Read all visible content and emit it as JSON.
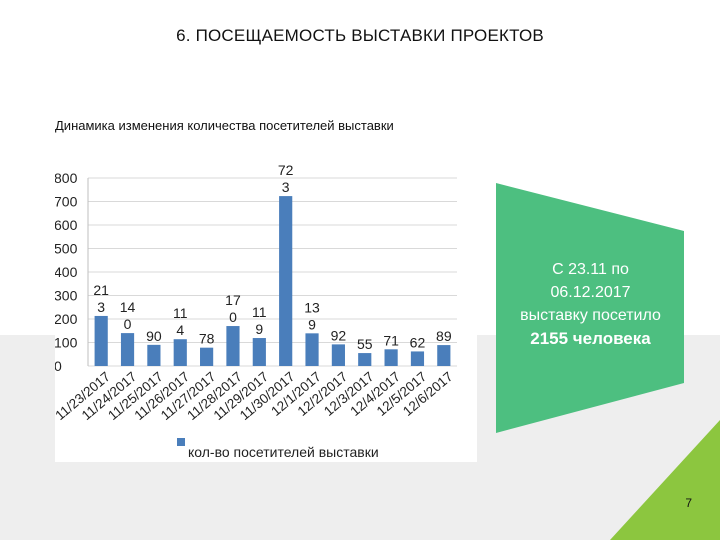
{
  "slide": {
    "title": "6. ПОСЕЩАЕМОСТЬ ВЫСТАВКИ ПРОЕКТОВ",
    "page_number": "7"
  },
  "callout": {
    "line1": "С 23.11 по",
    "line2": "06.12.2017",
    "line3": "выставку посетило",
    "line4": "2155 человека",
    "color": "#4dbf80"
  },
  "colors": {
    "bar": "#4a7ebb",
    "grid": "#d9d9d9",
    "accent_green": "#8cc63f"
  },
  "chart_data": {
    "type": "bar",
    "title": "Динамика изменения количества посетителей выставки",
    "categories": [
      "11/23/2017",
      "11/24/2017",
      "11/25/2017",
      "11/26/2017",
      "11/27/2017",
      "11/28/2017",
      "11/29/2017",
      "11/30/2017",
      "12/1/2017",
      "12/2/2017",
      "12/3/2017",
      "12/4/2017",
      "12/5/2017",
      "12/6/2017"
    ],
    "series": [
      {
        "name": "кол-во посетителей выставки",
        "values": [
          213,
          140,
          90,
          114,
          78,
          170,
          119,
          723,
          139,
          92,
          55,
          71,
          62,
          89
        ],
        "labels": [
          [
            "21",
            "3"
          ],
          [
            "14",
            "0"
          ],
          [
            "90"
          ],
          [
            "11",
            "4"
          ],
          [
            "78"
          ],
          [
            "17",
            "0"
          ],
          [
            "11",
            "9"
          ],
          [
            "72",
            "3"
          ],
          [
            "13",
            "9"
          ],
          [
            "92"
          ],
          [
            "55"
          ],
          [
            "71"
          ],
          [
            "62"
          ],
          [
            "89"
          ]
        ]
      }
    ],
    "yticks": [
      "0",
      "100",
      "200",
      "300",
      "400",
      "500",
      "600",
      "700",
      "800"
    ],
    "ylim": [
      0,
      800
    ],
    "grid": true,
    "legend": "bottom"
  }
}
